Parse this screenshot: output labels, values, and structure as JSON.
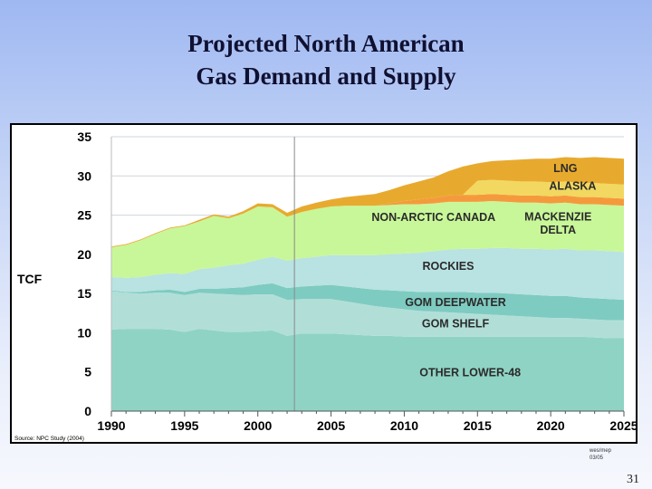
{
  "slide": {
    "title_line1": "Projected North American",
    "title_line2": "Gas Demand and Supply",
    "credit_line1": "wes/mep",
    "credit_line2": "03/05",
    "page_number": "31"
  },
  "chart_data": {
    "type": "area",
    "stacked": true,
    "title": "",
    "xlabel": "",
    "ylabel": "TCF",
    "source": "Source: NPC Study (2004)",
    "xlim": [
      1990,
      2025
    ],
    "ylim": [
      0,
      35
    ],
    "x_ticks": [
      1990,
      1995,
      2000,
      2005,
      2010,
      2015,
      2020,
      2025
    ],
    "y_ticks": [
      0,
      5,
      10,
      15,
      20,
      25,
      30,
      35
    ],
    "grid": "horizontal",
    "divider_year": 2002.5,
    "x": [
      1990,
      1991,
      1992,
      1993,
      1994,
      1995,
      1996,
      1997,
      1998,
      1999,
      2000,
      2001,
      2002,
      2003,
      2004,
      2005,
      2006,
      2007,
      2008,
      2009,
      2010,
      2011,
      2012,
      2013,
      2014,
      2015,
      2016,
      2017,
      2018,
      2019,
      2020,
      2021,
      2022,
      2023,
      2024,
      2025
    ],
    "series": [
      {
        "name": "OTHER LOWER-48",
        "color": "#8fd3c4",
        "values": [
          10.4,
          10.5,
          10.5,
          10.5,
          10.4,
          10.1,
          10.5,
          10.3,
          10.1,
          10.1,
          10.2,
          10.3,
          9.6,
          9.9,
          9.9,
          9.9,
          9.8,
          9.7,
          9.6,
          9.6,
          9.5,
          9.5,
          9.5,
          9.5,
          9.5,
          9.5,
          9.5,
          9.5,
          9.5,
          9.5,
          9.5,
          9.5,
          9.5,
          9.4,
          9.3,
          9.3
        ]
      },
      {
        "name": "GOM SHELF",
        "color": "#b1dfd8",
        "values": [
          4.9,
          4.6,
          4.5,
          4.6,
          4.7,
          4.7,
          4.6,
          4.7,
          4.8,
          4.7,
          4.7,
          4.6,
          4.6,
          4.4,
          4.4,
          4.4,
          4.2,
          4.0,
          3.8,
          3.6,
          3.5,
          3.3,
          3.2,
          3.1,
          3.0,
          2.9,
          2.8,
          2.7,
          2.6,
          2.5,
          2.4,
          2.4,
          2.3,
          2.3,
          2.3,
          2.3
        ]
      },
      {
        "name": "GOM DEEPWATER",
        "color": "#7ecbc1",
        "values": [
          0.1,
          0.1,
          0.2,
          0.3,
          0.4,
          0.4,
          0.5,
          0.6,
          0.8,
          1.0,
          1.2,
          1.4,
          1.5,
          1.6,
          1.7,
          1.8,
          1.9,
          2.0,
          2.1,
          2.2,
          2.3,
          2.4,
          2.5,
          2.6,
          2.7,
          2.7,
          2.8,
          2.8,
          2.8,
          2.8,
          2.8,
          2.8,
          2.7,
          2.7,
          2.7,
          2.6
        ]
      },
      {
        "name": "ROCKIES",
        "color": "#b9e2e2",
        "values": [
          1.7,
          1.8,
          1.9,
          2.0,
          2.1,
          2.3,
          2.5,
          2.7,
          2.9,
          3.0,
          3.2,
          3.4,
          3.5,
          3.6,
          3.7,
          3.8,
          4.0,
          4.2,
          4.4,
          4.6,
          4.8,
          5.0,
          5.2,
          5.4,
          5.5,
          5.6,
          5.7,
          5.8,
          5.8,
          5.9,
          5.9,
          6.0,
          6.0,
          6.1,
          6.1,
          6.1
        ]
      },
      {
        "name": "NON-ARCTIC CANADA",
        "color": "#c8f799",
        "values": [
          3.8,
          4.2,
          4.7,
          5.2,
          5.7,
          6.1,
          6.1,
          6.6,
          6.0,
          6.4,
          6.8,
          6.3,
          5.6,
          5.9,
          6.1,
          6.2,
          6.3,
          6.3,
          6.3,
          6.3,
          6.3,
          6.2,
          6.1,
          6.1,
          6.0,
          6.0,
          6.0,
          5.9,
          5.9,
          5.9,
          5.9,
          5.9,
          5.9,
          5.9,
          5.9,
          5.9
        ]
      },
      {
        "name": "MACKENZIE DELTA",
        "color": "#f59a3c",
        "values": [
          0,
          0,
          0,
          0,
          0,
          0,
          0,
          0,
          0,
          0,
          0,
          0,
          0,
          0,
          0,
          0,
          0,
          0,
          0,
          0.2,
          0.4,
          0.6,
          0.7,
          0.8,
          0.9,
          0.9,
          0.9,
          0.9,
          0.9,
          0.9,
          0.9,
          0.9,
          0.9,
          0.9,
          0.9,
          0.9
        ]
      },
      {
        "name": "ALASKA",
        "color": "#f2d860",
        "values": [
          0,
          0,
          0,
          0,
          0,
          0,
          0,
          0,
          0,
          0,
          0,
          0,
          0,
          0,
          0,
          0,
          0,
          0,
          0,
          0,
          0,
          0,
          0,
          0,
          0,
          1.8,
          1.8,
          1.8,
          1.8,
          1.8,
          1.8,
          1.8,
          1.8,
          1.8,
          1.8,
          1.8
        ]
      },
      {
        "name": "LNG",
        "color": "#e8aa2e",
        "values": [
          0.1,
          0.1,
          0.1,
          0.1,
          0.1,
          0.1,
          0.2,
          0.2,
          0.2,
          0.3,
          0.4,
          0.4,
          0.5,
          0.7,
          0.8,
          0.9,
          1.1,
          1.3,
          1.5,
          1.7,
          2.0,
          2.3,
          2.6,
          3.1,
          3.6,
          2.2,
          2.4,
          2.6,
          2.8,
          2.9,
          3.0,
          3.1,
          3.2,
          3.3,
          3.3,
          3.3
        ]
      }
    ]
  }
}
